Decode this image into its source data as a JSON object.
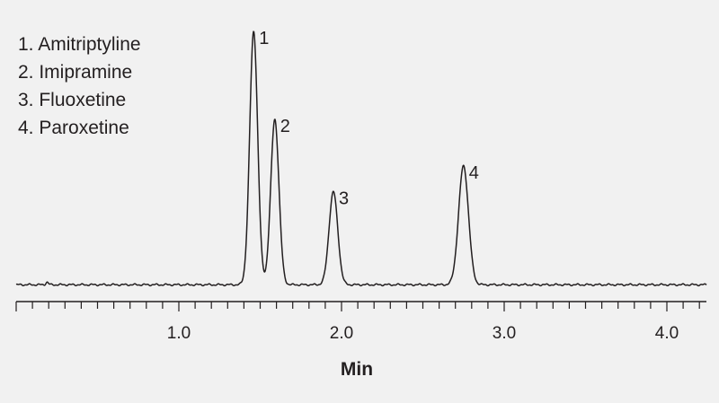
{
  "legend": [
    "1. Amitriptyline",
    "2. Imipramine",
    "3. Fluoxetine",
    "4. Paroxetine"
  ],
  "chart_data": {
    "type": "line",
    "title": "",
    "xlabel": "Min",
    "ylabel": "",
    "xlim": [
      0,
      4.25
    ],
    "ylim": [
      0,
      1.0
    ],
    "x_ticks": [
      1.0,
      2.0,
      3.0,
      4.0
    ],
    "x_tick_labels": [
      "1.0",
      "2.0",
      "3.0",
      "4.0"
    ],
    "minor_tick_step": 0.1,
    "grid": false,
    "baseline": 0.02,
    "peaks": [
      {
        "label": "1",
        "name": "Amitriptyline",
        "x": 1.46,
        "y": 1.0
      },
      {
        "label": "2",
        "name": "Imipramine",
        "x": 1.59,
        "y": 0.66
      },
      {
        "label": "3",
        "name": "Fluoxetine",
        "x": 1.95,
        "y": 0.38
      },
      {
        "label": "4",
        "name": "Paroxetine",
        "x": 2.75,
        "y": 0.48
      }
    ],
    "minor_features": [
      {
        "x": 0.19,
        "y": 0.01
      }
    ],
    "line_color": "#231f20"
  }
}
